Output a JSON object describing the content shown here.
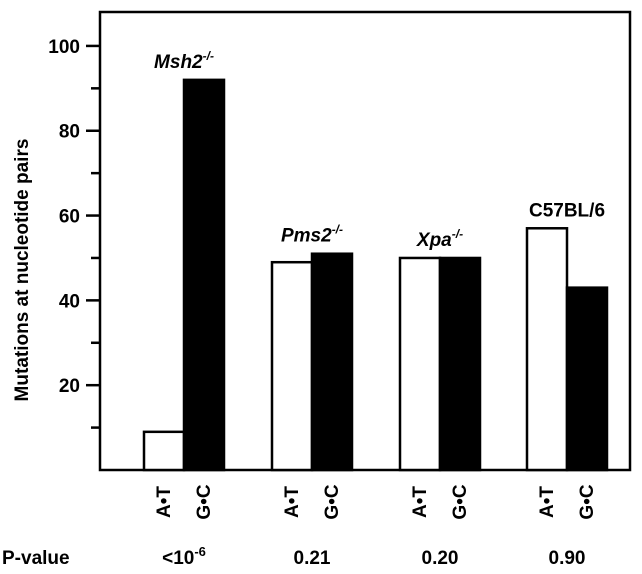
{
  "chart_data": {
    "type": "bar",
    "ylabel": "Mutations at nucleotide pairs",
    "ylim": [
      0,
      100
    ],
    "y_ticks": [
      20,
      40,
      60,
      80,
      100
    ],
    "y_minor_ticks": [
      10,
      30,
      50,
      70,
      90
    ],
    "categories": [
      "A•T",
      "G•C"
    ],
    "series": [
      {
        "name": "A•T",
        "color": "#ffffff"
      },
      {
        "name": "G•C",
        "color": "#000000"
      }
    ],
    "groups": [
      {
        "label": "Msh2",
        "sup": "-/-",
        "italic": true,
        "values": [
          9,
          92
        ],
        "p_value": "<10",
        "p_exp": "-6"
      },
      {
        "label": "Pms2",
        "sup": "-/-",
        "italic": true,
        "values": [
          49,
          51
        ],
        "p_value": "0.21",
        "p_exp": ""
      },
      {
        "label": "Xpa",
        "sup": "-/-",
        "italic": true,
        "values": [
          50,
          50
        ],
        "p_value": "0.20",
        "p_exp": ""
      },
      {
        "label": "C57BL/6",
        "sup": "",
        "italic": false,
        "values": [
          57,
          43
        ],
        "p_value": "0.90",
        "p_exp": ""
      }
    ],
    "p_value_label": "P-value"
  }
}
